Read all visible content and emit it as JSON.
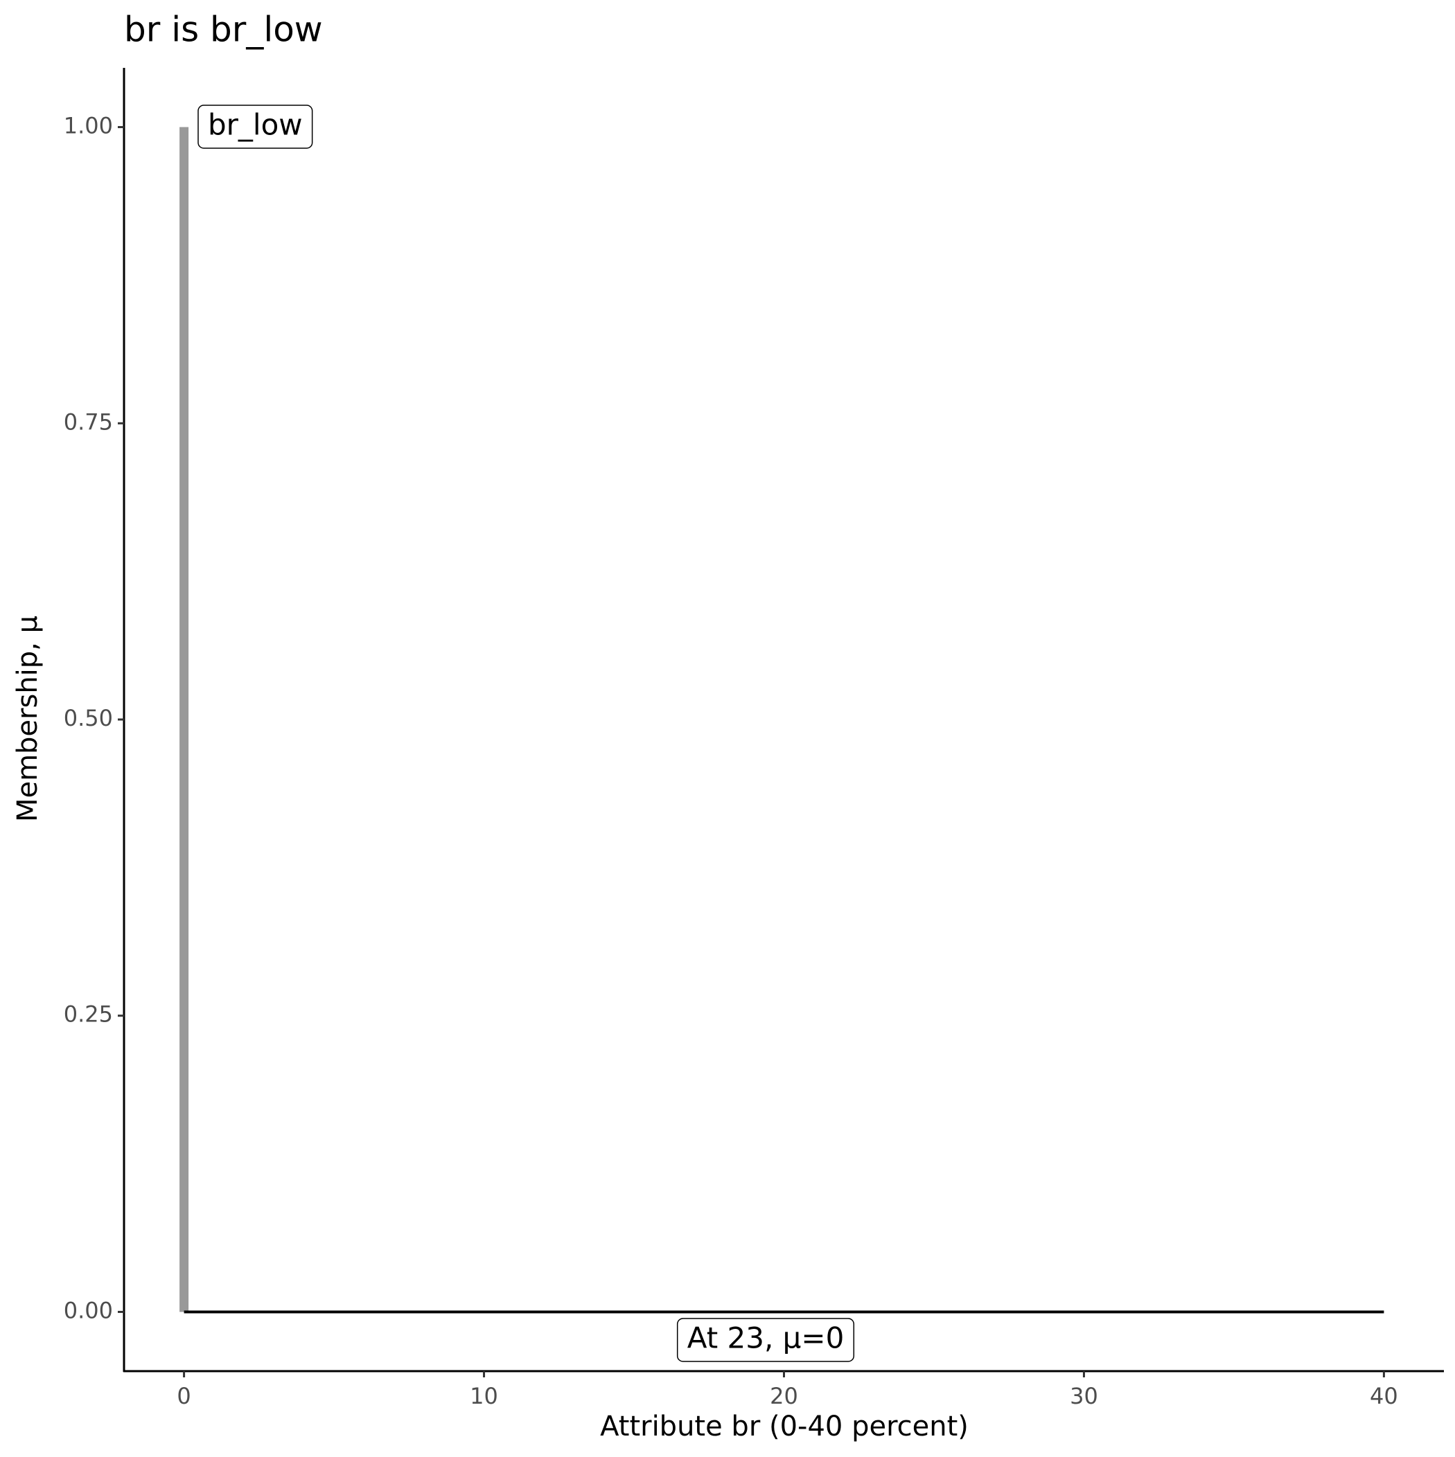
{
  "chart_data": {
    "type": "line",
    "title": "br is br_low",
    "x_label": "Attribute br (0-40 percent)",
    "y_label": "Membership, μ",
    "series": [
      {
        "color": "#999999",
        "x": [
          0,
          0
        ],
        "values": [
          0,
          1
        ]
      },
      {
        "color": "#000000",
        "x": [
          0,
          40
        ],
        "values": [
          0,
          0
        ]
      }
    ],
    "annotations": [
      "br_low",
      "At 23, μ=0"
    ],
    "xlim": [
      -2,
      42
    ],
    "ylim": [
      -0.05,
      1.05
    ],
    "xticks": [
      0,
      10,
      20,
      30,
      40
    ],
    "yticks": [
      {
        "value": 0,
        "label": "0.00"
      },
      0.25,
      {
        "value": 0.5,
        "label": "0.50"
      },
      0.75,
      {
        "value": 1,
        "label": "1.00"
      }
    ],
    "grid": false
  }
}
